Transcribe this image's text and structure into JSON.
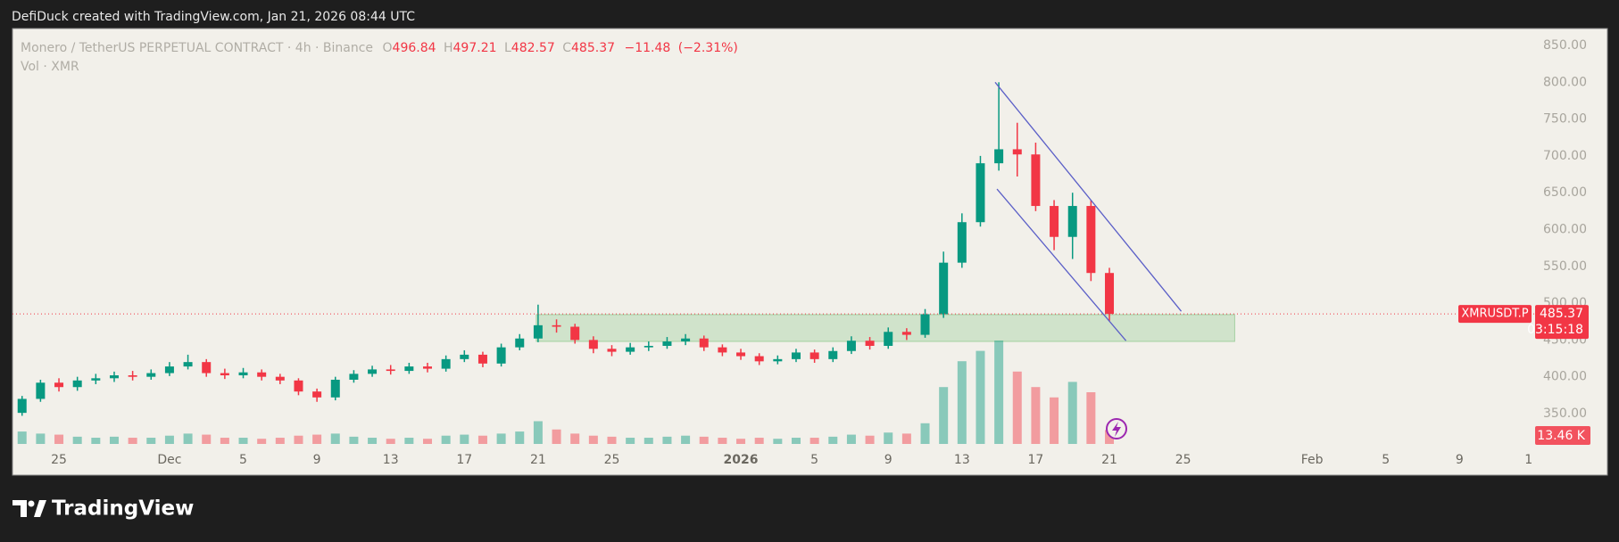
{
  "header": {
    "credit": "DefiDuck created with TradingView.com, Jan 21, 2026 08:44 UTC"
  },
  "footer": {
    "brand": "TradingView"
  },
  "chart_data": {
    "type": "candlestick",
    "symbol": "Monero / TetherUS PERPETUAL CONTRACT · 4h · Binance",
    "ohlc": [
      {
        "label": "O",
        "value": 496.84
      },
      {
        "label": "H",
        "value": 497.21
      },
      {
        "label": "L",
        "value": 482.57
      },
      {
        "label": "C",
        "value": 485.37
      }
    ],
    "change": {
      "value": -11.48,
      "label": "−11.48"
    },
    "change_pct": {
      "value": -2.31,
      "label": "(−2.31%)"
    },
    "volume_title": "Vol · XMR",
    "symbol_tag": "XMRUSDT.P",
    "last_price": 485.37,
    "countdown": "03:15:18",
    "up_color": "#089981",
    "down_color": "#f23645",
    "xlim": [
      -2.52,
      80.1
    ],
    "ylim": [
      308.8,
      873
    ],
    "xticks": [
      {
        "value": 0,
        "label": "25"
      },
      {
        "value": 6,
        "label": "Dec"
      },
      {
        "value": 10,
        "label": "5"
      },
      {
        "value": 14,
        "label": "9"
      },
      {
        "value": 18,
        "label": "13"
      },
      {
        "value": 22,
        "label": "17"
      },
      {
        "value": 26,
        "label": "21"
      },
      {
        "value": 30,
        "label": "25"
      },
      {
        "value": 37,
        "label": "2026"
      },
      {
        "value": 41,
        "label": "5"
      },
      {
        "value": 45,
        "label": "9"
      },
      {
        "value": 49,
        "label": "13"
      },
      {
        "value": 53,
        "label": "17"
      },
      {
        "value": 57,
        "label": "21"
      },
      {
        "value": 61,
        "label": "25"
      },
      {
        "value": 68,
        "label": "Feb"
      },
      {
        "value": 72,
        "label": "5"
      },
      {
        "value": 76,
        "label": "9"
      },
      {
        "value": 79.75,
        "label": "1"
      }
    ],
    "yticks": [
      {
        "value": 350,
        "label": "350.00"
      },
      {
        "value": 400,
        "label": "400.00"
      },
      {
        "value": 450,
        "label": "450.00"
      },
      {
        "value": 500,
        "label": "500.00"
      },
      {
        "value": 550,
        "label": "550.00"
      },
      {
        "value": 600,
        "label": "600.00"
      },
      {
        "value": 650,
        "label": "650.00"
      },
      {
        "value": 700,
        "label": "700.00"
      },
      {
        "value": 750,
        "label": "750.00"
      },
      {
        "value": 800,
        "label": "800.00"
      },
      {
        "value": 850,
        "label": "850.00"
      }
    ],
    "x": [
      -2,
      -1,
      0,
      1,
      2,
      3,
      4,
      5,
      6,
      7,
      8,
      9,
      10,
      11,
      12,
      13,
      14,
      15,
      16,
      17,
      18,
      19,
      20,
      21,
      22,
      23,
      24,
      25,
      26,
      27,
      28,
      29,
      30,
      31,
      32,
      33,
      34,
      35,
      36,
      37,
      38,
      39,
      40,
      41,
      42,
      43,
      44,
      45,
      46,
      47,
      48,
      49,
      50,
      51,
      52,
      53,
      54,
      55,
      56,
      57
    ],
    "open": [
      351,
      370,
      392,
      386,
      395,
      398,
      402,
      400,
      405,
      414,
      420,
      405,
      402,
      406,
      400,
      395,
      380,
      372,
      396,
      404,
      410,
      408,
      414,
      411,
      424,
      430,
      418,
      440,
      452,
      470,
      468,
      450,
      438,
      434,
      440,
      442,
      448,
      452,
      440,
      433,
      428,
      421,
      424,
      433,
      424,
      435,
      449,
      442,
      461,
      457,
      485,
      555,
      610,
      690,
      709,
      702,
      632,
      590,
      632,
      541
    ],
    "high": [
      374,
      396,
      398,
      400,
      404,
      407,
      408,
      410,
      420,
      430,
      424,
      411,
      412,
      410,
      404,
      398,
      384,
      400,
      409,
      415,
      416,
      419,
      419,
      429,
      436,
      434,
      445,
      458,
      498,
      478,
      472,
      455,
      443,
      446,
      448,
      454,
      458,
      456,
      444,
      438,
      432,
      429,
      438,
      437,
      440,
      455,
      454,
      467,
      466,
      492,
      570,
      622,
      700,
      800,
      745,
      718,
      640,
      650,
      640,
      548
    ],
    "low": [
      347,
      366,
      380,
      381,
      390,
      393,
      395,
      396,
      401,
      410,
      400,
      397,
      398,
      395,
      390,
      375,
      366,
      368,
      392,
      400,
      403,
      404,
      406,
      407,
      420,
      413,
      414,
      436,
      447,
      460,
      445,
      432,
      428,
      430,
      435,
      438,
      443,
      435,
      428,
      423,
      416,
      417,
      420,
      419,
      420,
      431,
      437,
      438,
      450,
      453,
      480,
      548,
      604,
      680,
      672,
      625,
      572,
      560,
      530,
      476
    ],
    "close": [
      370,
      392,
      386,
      395,
      398,
      402,
      400,
      405,
      414,
      420,
      405,
      402,
      406,
      400,
      395,
      380,
      372,
      396,
      404,
      410,
      408,
      414,
      411,
      424,
      430,
      418,
      440,
      452,
      470,
      468,
      450,
      438,
      434,
      440,
      442,
      448,
      452,
      440,
      433,
      428,
      421,
      424,
      433,
      424,
      435,
      449,
      442,
      461,
      457,
      485,
      555,
      610,
      690,
      709,
      702,
      632,
      590,
      632,
      541,
      485.37
    ],
    "volume": {
      "lim": [
        0,
        100
      ],
      "last_label": "13.46 K",
      "values": [
        12,
        10,
        9,
        7,
        6,
        7,
        6,
        6,
        8,
        10,
        9,
        6,
        6,
        5,
        6,
        8,
        9,
        10,
        7,
        6,
        5,
        6,
        5,
        8,
        9,
        8,
        10,
        12,
        22,
        14,
        10,
        8,
        7,
        6,
        6,
        7,
        8,
        7,
        6,
        5,
        6,
        5,
        6,
        6,
        7,
        9,
        8,
        11,
        10,
        20,
        55,
        80,
        90,
        100,
        70,
        55,
        45,
        60,
        50,
        13.46
      ]
    },
    "channel": [
      {
        "x": [
          50.8,
          60.9
        ],
        "y": [
          800,
          489
        ],
        "color": "#5b5fc7"
      },
      {
        "x": [
          50.9,
          57.9
        ],
        "y": [
          655,
          449
        ],
        "color": "#5b5fc7"
      }
    ],
    "zone": {
      "x": [
        25.9,
        63.8
      ],
      "y": [
        484.5,
        448
      ],
      "color": "#4caf50"
    }
  }
}
